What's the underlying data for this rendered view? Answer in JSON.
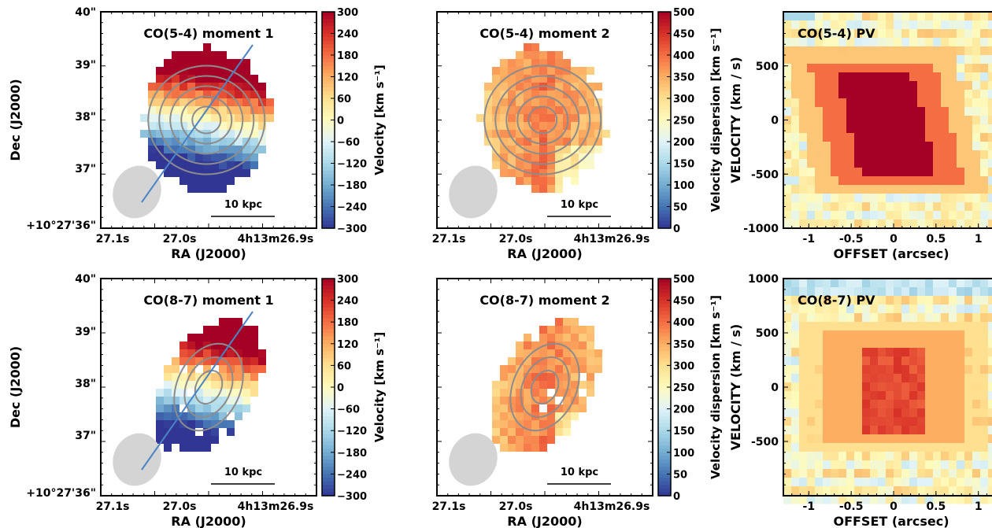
{
  "colors": {
    "map_low": "#313695",
    "map_mid": "#fefbbd",
    "map_high": "#a50026",
    "contour": "#8c8c8c",
    "beam": "#d4d4d4",
    "slit": "#4a84c4"
  },
  "chart_data": [
    {
      "id": "co54-mom1",
      "type": "heatmap",
      "title": "CO(5-4) moment 1",
      "xlabel": "RA (J2000)",
      "ylabel": "Dec (J2000)",
      "xticks": [
        "27.1s",
        "27.0s",
        "4h13m26.9s"
      ],
      "yticks": [
        "40\"",
        "39\"",
        "38\"",
        "37\"",
        "+10°27'36\""
      ],
      "colorbar": {
        "label": "Velocity [km s⁻¹]",
        "range": [
          -300,
          300
        ],
        "ticks": [
          "300",
          "240",
          "180",
          "120",
          "60",
          "0",
          "−60",
          "−120",
          "−180",
          "−240",
          "−300"
        ]
      },
      "scale_bar": "10 kpc",
      "beam": true,
      "slit": true,
      "contour_levels": 5
    },
    {
      "id": "co54-mom2",
      "type": "heatmap",
      "title": "CO(5-4) moment 2",
      "xlabel": "RA (J2000)",
      "ylabel": "",
      "xticks": [
        "27.1s",
        "27.0s",
        "4h13m26.9s"
      ],
      "colorbar": {
        "label": "Velocity dispersion [km s⁻¹]",
        "range": [
          0,
          500
        ],
        "ticks": [
          "500",
          "450",
          "400",
          "350",
          "300",
          "250",
          "200",
          "150",
          "100",
          "50",
          "0"
        ]
      },
      "scale_bar": "10 kpc",
      "beam": true,
      "contour_levels": 5
    },
    {
      "id": "co54-pv",
      "type": "heatmap",
      "title": "CO(5-4) PV",
      "xlabel": "OFFSET (arcsec)",
      "ylabel": "VELOCITY (km / s)",
      "xticks": [
        "-1",
        "-0.5",
        "0",
        "0.5",
        "1"
      ],
      "yticks": [
        "500",
        "0",
        "-500",
        "-1000"
      ],
      "xlim": [
        -1.3,
        1.3
      ],
      "ylim": [
        -1000,
        1000
      ]
    },
    {
      "id": "co87-mom1",
      "type": "heatmap",
      "title": "CO(8-7) moment 1",
      "xlabel": "RA (J2000)",
      "ylabel": "Dec (J2000)",
      "xticks": [
        "27.1s",
        "27.0s",
        "4h13m26.9s"
      ],
      "yticks": [
        "40\"",
        "39\"",
        "38\"",
        "37\"",
        "+10°27'36\""
      ],
      "colorbar": {
        "label": "Velocity [km s⁻¹]",
        "range": [
          -300,
          300
        ],
        "ticks": [
          "300",
          "240",
          "180",
          "120",
          "60",
          "0",
          "−60",
          "−120",
          "−180",
          "−240",
          "−300"
        ]
      },
      "scale_bar": "10 kpc",
      "beam": true,
      "slit": true,
      "contour_levels": 3
    },
    {
      "id": "co87-mom2",
      "type": "heatmap",
      "title": "CO(8-7) moment 2",
      "xlabel": "RA (J2000)",
      "ylabel": "",
      "xticks": [
        "27.1s",
        "27.0s",
        "4h13m26.9s"
      ],
      "colorbar": {
        "label": "Velocity dispersion [km s⁻¹]",
        "range": [
          0,
          500
        ],
        "ticks": [
          "500",
          "450",
          "400",
          "350",
          "300",
          "250",
          "200",
          "150",
          "100",
          "50",
          "0"
        ]
      },
      "scale_bar": "10 kpc",
      "beam": true,
      "contour_levels": 3
    },
    {
      "id": "co87-pv",
      "type": "heatmap",
      "title": "CO(8-7) PV",
      "xlabel": "OFFSET (arcsec)",
      "ylabel": "VELOCITY (km / s)",
      "xticks": [
        "-1",
        "-0.5",
        "0",
        "0.5",
        "1"
      ],
      "yticks": [
        "1000",
        "500",
        "0",
        "-500"
      ],
      "xlim": [
        -1.3,
        1.3
      ],
      "ylim": [
        -1000,
        1000
      ]
    }
  ]
}
